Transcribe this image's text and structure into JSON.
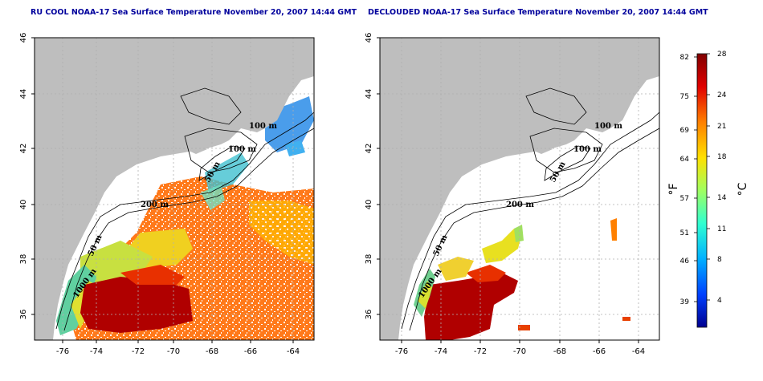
{
  "titles": {
    "left": "RU COOL NOAA-17 Sea Surface Temperature November 20, 2007 14:44 GMT",
    "right": "DECLOUDED NOAA-17 Sea Surface Temperature November 20, 2007 14:44 GMT"
  },
  "axes": {
    "lon_ticks": [
      "-76",
      "-74",
      "-72",
      "-70",
      "-68",
      "-66",
      "-64"
    ],
    "lat_ticks": [
      "36",
      "38",
      "40",
      "42",
      "44",
      "46"
    ]
  },
  "contours": {
    "labels": [
      "100 m",
      "100 m",
      "50 m",
      "200 m",
      "50 m",
      "1000 m"
    ]
  },
  "colorbar": {
    "fahrenheit_ticks": [
      "82",
      "75",
      "69",
      "64",
      "57",
      "51",
      "46",
      "39"
    ],
    "celsius_ticks": [
      "28",
      "24",
      "21",
      "18",
      "14",
      "11",
      "8",
      "4"
    ],
    "unit_f": "°F",
    "unit_c": "°C",
    "colors": [
      "#00008f",
      "#0050ff",
      "#00c0ff",
      "#40ffc0",
      "#c0ff40",
      "#ffd000",
      "#ff6000",
      "#d00000",
      "#800000"
    ]
  },
  "colors": {
    "land": "#bebebe",
    "water_empty": "#ffffff",
    "grid": "#b0b0b0",
    "title": "#00009c"
  }
}
